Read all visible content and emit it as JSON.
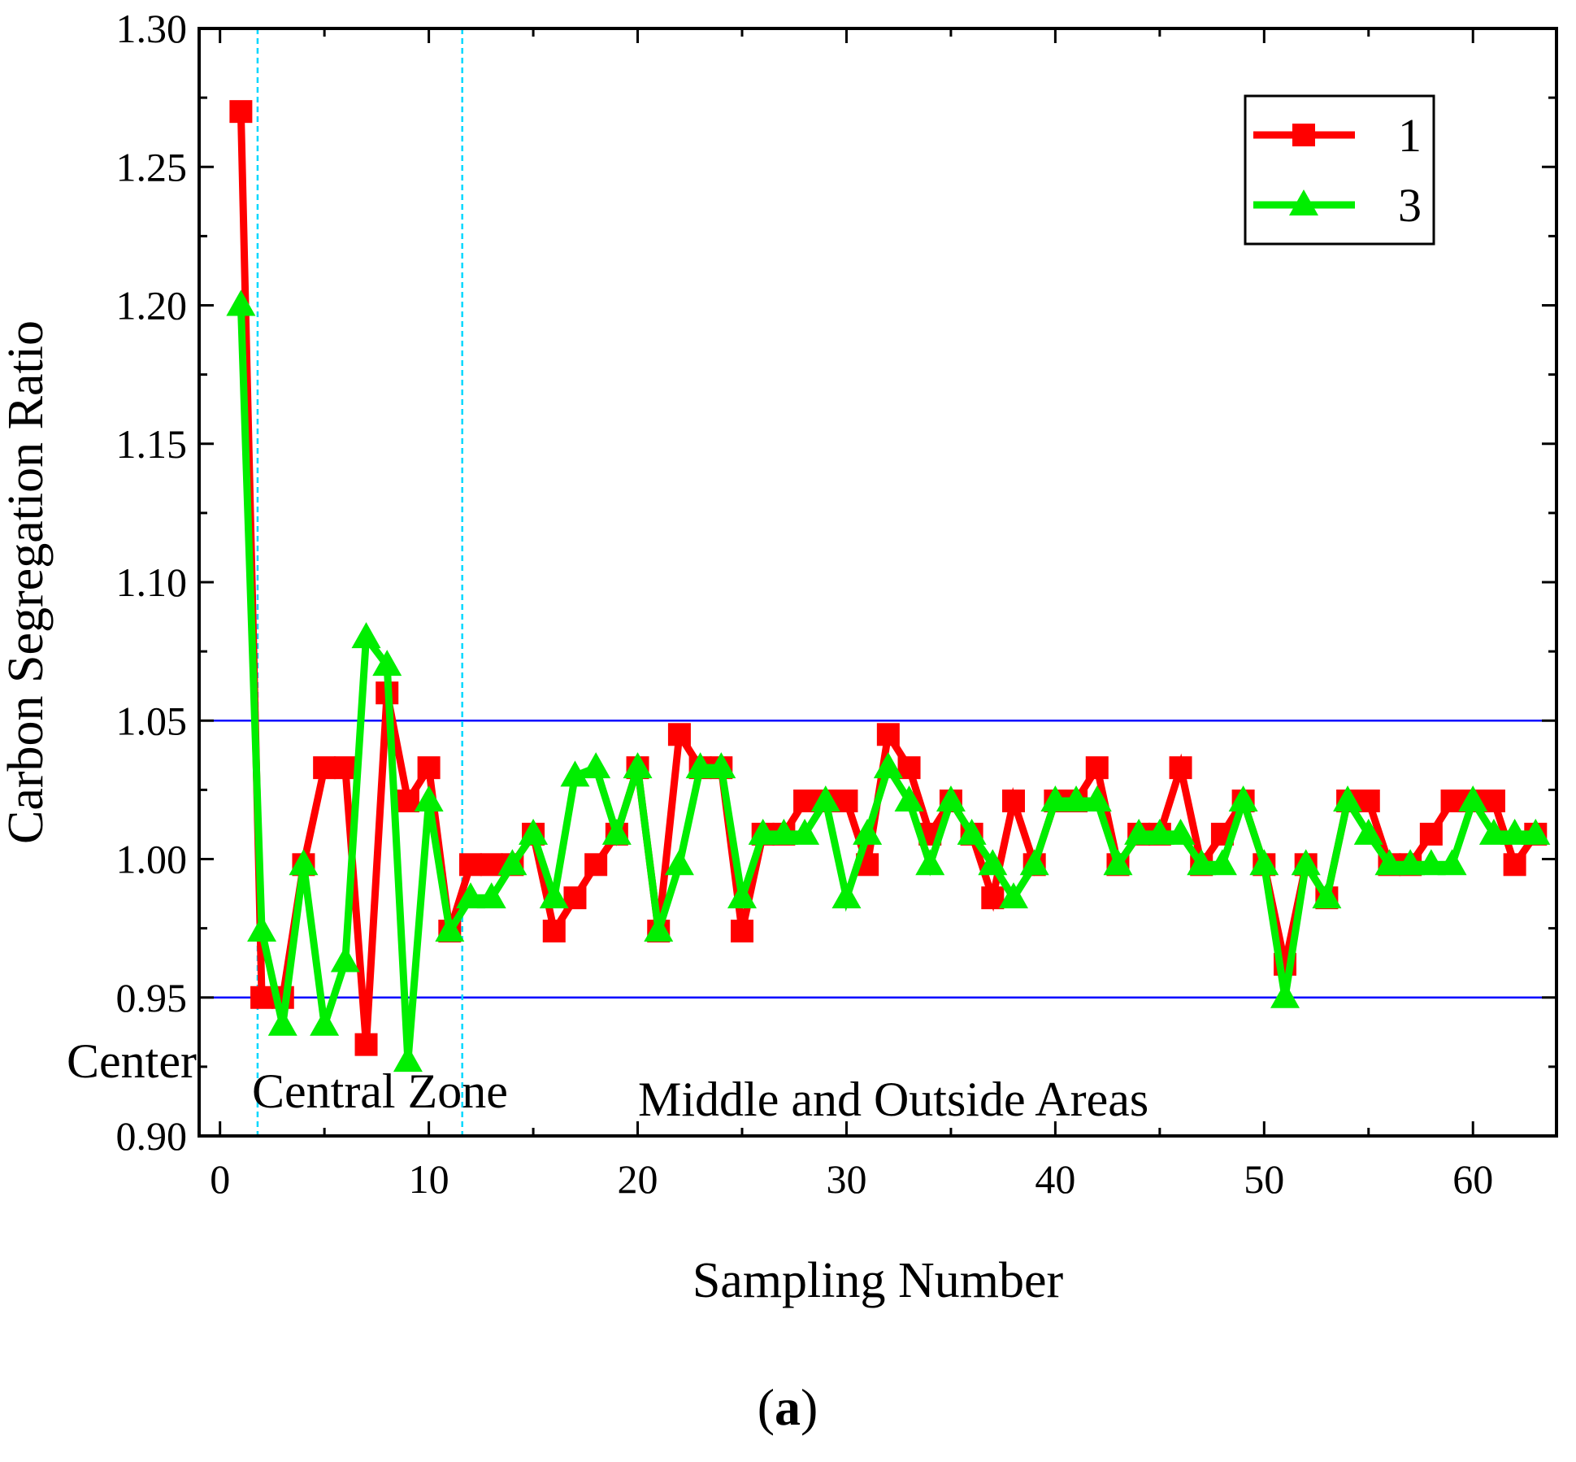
{
  "chart_data": {
    "type": "line",
    "xlabel": "Sampling Number",
    "ylabel": "Carbon Segregation Ratio",
    "xlim": [
      -1,
      64
    ],
    "ylim": [
      0.9,
      1.3
    ],
    "x_ticks": [
      0,
      10,
      20,
      30,
      40,
      50,
      60
    ],
    "x_tick_labels": [
      "0",
      "10",
      "20",
      "30",
      "40",
      "50",
      "60"
    ],
    "y_ticks": [
      0.9,
      0.95,
      1.0,
      1.05,
      1.1,
      1.15,
      1.2,
      1.25,
      1.3
    ],
    "y_tick_labels": [
      "0.90",
      "0.95",
      "1.00",
      "1.05",
      "1.10",
      "1.15",
      "1.20",
      "1.25",
      "1.30"
    ],
    "grid": false,
    "legend_position": "top-right",
    "x": [
      1,
      2,
      3,
      4,
      5,
      6,
      7,
      8,
      9,
      10,
      11,
      12,
      13,
      14,
      15,
      16,
      17,
      18,
      19,
      20,
      21,
      22,
      23,
      24,
      25,
      26,
      27,
      28,
      29,
      30,
      31,
      32,
      33,
      34,
      35,
      36,
      37,
      38,
      39,
      40,
      41,
      42,
      43,
      44,
      45,
      46,
      47,
      48,
      49,
      50,
      51,
      52,
      53,
      54,
      55,
      56,
      57,
      58,
      59,
      60,
      61,
      62,
      63
    ],
    "series": [
      {
        "name": "1",
        "color": "#ff0000",
        "marker": "square",
        "values": [
          1.27,
          0.95,
          0.95,
          0.998,
          1.033,
          1.033,
          0.933,
          1.06,
          1.021,
          1.033,
          0.974,
          0.998,
          0.998,
          0.998,
          1.009,
          0.974,
          0.986,
          0.998,
          1.009,
          1.033,
          0.974,
          1.045,
          1.033,
          1.033,
          0.974,
          1.009,
          1.009,
          1.021,
          1.021,
          1.021,
          0.998,
          1.045,
          1.033,
          1.009,
          1.021,
          1.009,
          0.986,
          1.021,
          0.998,
          1.021,
          1.021,
          1.033,
          0.998,
          1.009,
          1.009,
          1.033,
          0.998,
          1.009,
          1.021,
          0.998,
          0.962,
          0.998,
          0.986,
          1.021,
          1.021,
          0.998,
          0.998,
          1.009,
          1.021,
          1.021,
          1.021,
          0.998,
          1.009
        ]
      },
      {
        "name": "3",
        "color": "#00ee00",
        "marker": "triangle",
        "values": [
          1.2,
          0.974,
          0.94,
          0.998,
          0.94,
          0.963,
          1.08,
          1.07,
          0.927,
          1.021,
          0.974,
          0.986,
          0.986,
          0.998,
          1.009,
          0.986,
          1.03,
          1.033,
          1.009,
          1.033,
          0.974,
          0.998,
          1.033,
          1.033,
          0.986,
          1.009,
          1.009,
          1.009,
          1.021,
          0.986,
          1.009,
          1.033,
          1.021,
          0.998,
          1.021,
          1.009,
          0.998,
          0.986,
          0.998,
          1.021,
          1.021,
          1.021,
          0.998,
          1.009,
          1.009,
          1.009,
          0.998,
          0.998,
          1.021,
          0.998,
          0.95,
          0.998,
          0.986,
          1.021,
          1.009,
          0.998,
          0.998,
          0.998,
          0.998,
          1.021,
          1.009,
          1.009,
          1.009
        ]
      }
    ],
    "reference_lines": {
      "horizontal": [
        1.05,
        0.95
      ],
      "horizontal_color": "#0000ff",
      "vertical": [
        1.8,
        11.6
      ],
      "vertical_color": "#00d8ff"
    },
    "annotations": {
      "center": "Center",
      "central_zone": "Central Zone",
      "middle_outside": "Middle and Outside Areas"
    },
    "caption_open": "(",
    "caption_letter": "a",
    "caption_close": ")"
  }
}
